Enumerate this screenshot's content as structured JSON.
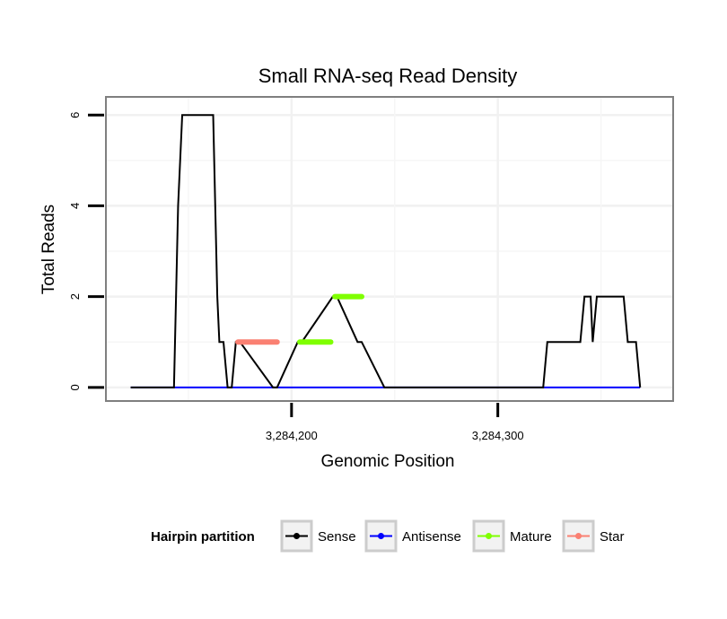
{
  "chart_data": {
    "type": "line",
    "title": "Small RNA-seq Read Density",
    "xlabel": "Genomic Position",
    "ylabel": "Total Reads",
    "xlim": [
      3284110,
      3284385
    ],
    "ylim": [
      -0.3,
      6.4
    ],
    "x_ticks": [
      3284200,
      3284300
    ],
    "x_tick_labels": [
      "3,284,200",
      "3,284,300"
    ],
    "y_ticks": [
      0,
      2,
      4,
      6
    ],
    "y_tick_labels": [
      "0",
      "2",
      "4",
      "6"
    ],
    "grid": true,
    "legend": {
      "title": "Hairpin partition",
      "position": "bottom",
      "entries": [
        "Sense",
        "Antisense",
        "Mature",
        "Star"
      ]
    },
    "series": [
      {
        "name": "Sense",
        "color": "#000000",
        "x": [
          3284122,
          3284143,
          3284145,
          3284147,
          3284162,
          3284164,
          3284165,
          3284167,
          3284169,
          3284171,
          3284173,
          3284175,
          3284191,
          3284193,
          3284203,
          3284205,
          3284220,
          3284222,
          3284232,
          3284234,
          3284245,
          3284247,
          3284298,
          3284300,
          3284322,
          3284324,
          3284340,
          3284342,
          3284345,
          3284346,
          3284348,
          3284361,
          3284363,
          3284367,
          3284369
        ],
        "values": [
          0,
          0,
          4,
          6,
          6,
          2,
          1,
          1,
          0,
          0,
          1,
          1,
          0,
          0,
          1,
          1,
          2,
          2,
          1,
          1,
          0,
          0,
          0,
          0,
          0,
          1,
          1,
          2,
          2,
          1,
          2,
          2,
          1,
          1,
          0
        ]
      },
      {
        "name": "Antisense",
        "color": "#0000ff",
        "x": [
          3284122,
          3284369
        ],
        "values": [
          0,
          0
        ]
      },
      {
        "name": "Mature",
        "color": "#7fff00",
        "segments": [
          {
            "x": [
              3284204,
              3284219
            ],
            "values": [
              1,
              1
            ]
          },
          {
            "x": [
              3284221,
              3284234
            ],
            "values": [
              2,
              2
            ]
          }
        ]
      },
      {
        "name": "Star",
        "color": "#fa8072",
        "segments": [
          {
            "x": [
              3284174,
              3284193
            ],
            "values": [
              1,
              1
            ]
          }
        ]
      }
    ]
  }
}
